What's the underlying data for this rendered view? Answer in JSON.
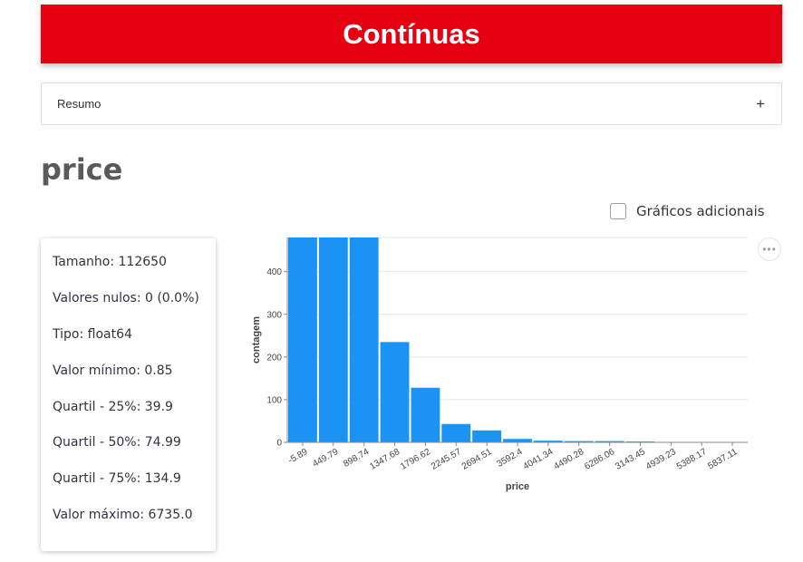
{
  "header": {
    "title": "Contínuas",
    "color": "#e60012"
  },
  "expander": {
    "label": "Resumo",
    "icon": "plus-icon",
    "icon_glyph": "+"
  },
  "section": {
    "title": "price"
  },
  "checkbox": {
    "label": "Gráficos adicionais",
    "checked": false
  },
  "stats": [
    "Tamanho: 112650",
    "Valores nulos: 0 (0.0%)",
    "Tipo: float64",
    "Valor mínimo: 0.85",
    "Quartil - 25%: 39.9",
    "Quartil - 50%: 74.99",
    "Quartil - 75%: 134.9",
    "Valor máximo: 6735.0"
  ],
  "chart_menu": {
    "icon": "more-horizontal-icon",
    "glyph": "•••"
  },
  "chart_data": {
    "type": "bar",
    "xlabel": "price",
    "ylabel": "contagem",
    "categories": [
      "-5.89",
      "449.79",
      "898.74",
      "1347.68",
      "1796.62",
      "2245.57",
      "2694.51",
      "3592.4",
      "4041.34",
      "4490.28",
      "6286.06",
      "3143.45",
      "4939.23",
      "5388.17",
      "5837.11"
    ],
    "values": [
      480,
      480,
      480,
      235,
      128,
      43,
      28,
      8,
      4,
      3,
      3,
      2,
      1,
      1,
      1
    ],
    "yticks": [
      0,
      100,
      200,
      300,
      400
    ],
    "ylim": [
      0,
      480
    ],
    "bar_color": "#1a93f5",
    "grid": true
  }
}
